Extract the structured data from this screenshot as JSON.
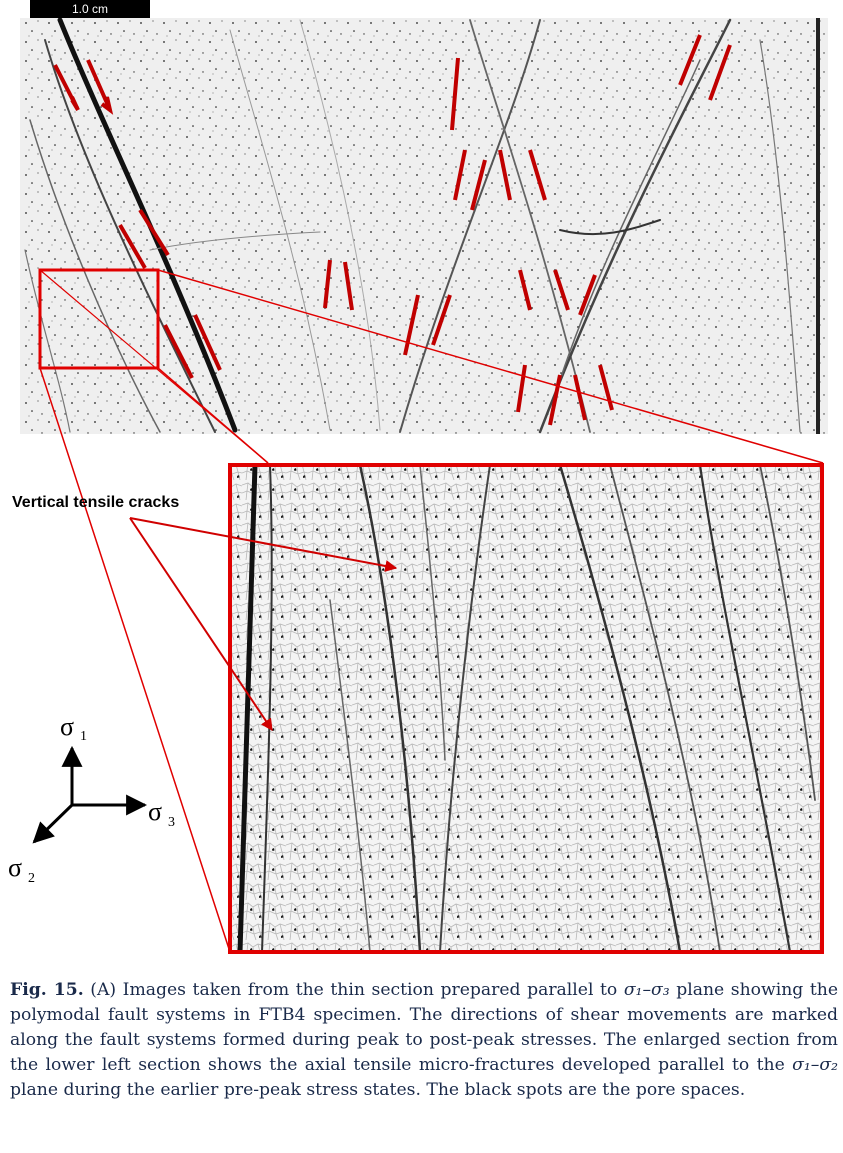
{
  "figure": {
    "scale_bar_label": "1.0 cm",
    "annotation": "Vertical tensile cracks",
    "axes": {
      "sigma1": {
        "symbol": "σ",
        "sub": "1"
      },
      "sigma2": {
        "symbol": "σ",
        "sub": "2"
      },
      "sigma3": {
        "symbol": "σ",
        "sub": "3"
      }
    },
    "colors": {
      "arrow": "#c00000",
      "inset_frame": "#e00000"
    }
  },
  "caption": {
    "label": "Fig. 15.",
    "text_1": " (A) Images taken from the thin section prepared parallel to ",
    "math_1": "σ₁–σ₃",
    "text_2": " plane showing the polymodal fault systems in FTB4 specimen. The directions of shear movements are marked along the fault systems formed during peak to post-peak stresses. The enlarged section from the lower left section shows the axial tensile micro-fractures developed parallel to the ",
    "math_2": "σ₁–σ₂",
    "text_3": " plane during the earlier pre-peak stress states. The black spots are the pore spaces."
  }
}
